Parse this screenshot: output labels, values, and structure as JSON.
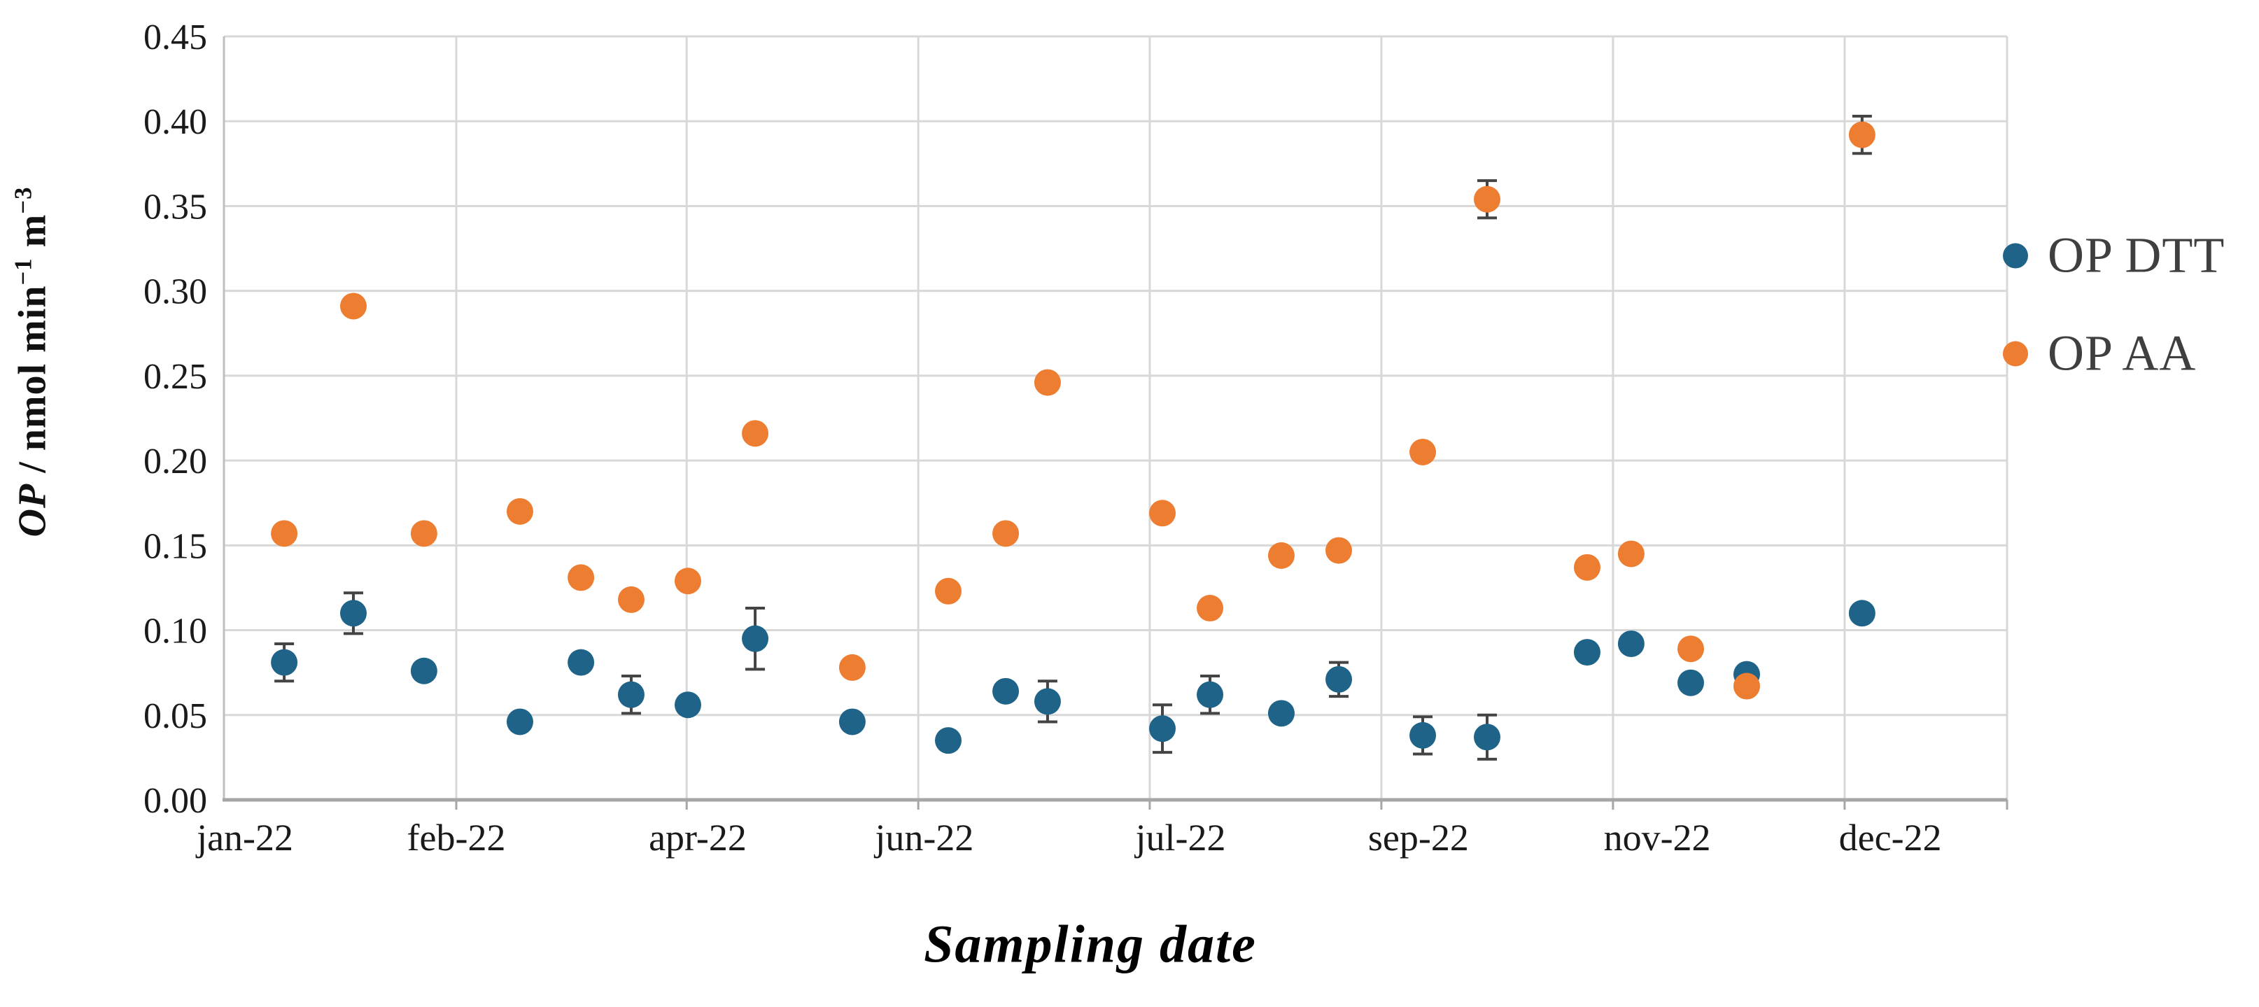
{
  "chart_data": {
    "type": "scatter",
    "title": "",
    "xlabel": "Sampling date",
    "ylabel_text": "OP / nmol min-1 m-3",
    "ylabel_parts": {
      "op": "OP",
      "mid": " / nmol min",
      "sup1": "−1",
      "m": " m",
      "sup2": "−3"
    },
    "ylim": [
      0.0,
      0.45
    ],
    "y_tick_step": 0.05,
    "y_tick_labels": [
      "0.00",
      "0.05",
      "0.10",
      "0.15",
      "0.20",
      "0.25",
      "0.30",
      "0.35",
      "0.40",
      "0.45"
    ],
    "grid": true,
    "legend_position": "right",
    "legend": [
      "OP DTT",
      "OP AA"
    ],
    "x_tick_labels": [
      {
        "label": "jan-22",
        "pos": 0.0118
      },
      {
        "label": "feb-22",
        "pos": 0.1303
      },
      {
        "label": "apr-22",
        "pos": 0.2657
      },
      {
        "label": "jun-22",
        "pos": 0.3928
      },
      {
        "label": "jul-22",
        "pos": 0.5365
      },
      {
        "label": "sep-22",
        "pos": 0.6699
      },
      {
        "label": "nov-22",
        "pos": 0.8038
      },
      {
        "label": "dec-22",
        "pos": 0.9345
      }
    ],
    "x_gridline_pos": [
      0.1303,
      0.2595,
      0.3894,
      0.5192,
      0.6491,
      0.779,
      0.9089,
      1.0
    ],
    "series": [
      {
        "name": "OP DTT",
        "color": "#1F6488",
        "points": [
          {
            "pos": 0.0338,
            "y": 0.081,
            "err": 0.011
          },
          {
            "pos": 0.0726,
            "y": 0.11,
            "err": 0.012
          },
          {
            "pos": 0.1122,
            "y": 0.076,
            "err": null
          },
          {
            "pos": 0.166,
            "y": 0.046,
            "err": null
          },
          {
            "pos": 0.2002,
            "y": 0.081,
            "err": null
          },
          {
            "pos": 0.2284,
            "y": 0.062,
            "err": 0.011
          },
          {
            "pos": 0.2602,
            "y": 0.056,
            "err": null
          },
          {
            "pos": 0.2979,
            "y": 0.095,
            "err": 0.018
          },
          {
            "pos": 0.3524,
            "y": 0.046,
            "err": null
          },
          {
            "pos": 0.4062,
            "y": 0.035,
            "err": null
          },
          {
            "pos": 0.4384,
            "y": 0.064,
            "err": null
          },
          {
            "pos": 0.4619,
            "y": 0.058,
            "err": 0.012
          },
          {
            "pos": 0.5263,
            "y": 0.042,
            "err": 0.014
          },
          {
            "pos": 0.553,
            "y": 0.062,
            "err": 0.011
          },
          {
            "pos": 0.593,
            "y": 0.051,
            "err": null
          },
          {
            "pos": 0.6252,
            "y": 0.071,
            "err": 0.01
          },
          {
            "pos": 0.6723,
            "y": 0.038,
            "err": 0.011
          },
          {
            "pos": 0.7084,
            "y": 0.037,
            "err": 0.013
          },
          {
            "pos": 0.7645,
            "y": 0.087,
            "err": null
          },
          {
            "pos": 0.7892,
            "y": 0.092,
            "err": null
          },
          {
            "pos": 0.8226,
            "y": 0.069,
            "err": null
          },
          {
            "pos": 0.854,
            "y": 0.074,
            "err": null
          },
          {
            "pos": 0.9187,
            "y": 0.11,
            "err": null
          }
        ]
      },
      {
        "name": "OP AA",
        "color": "#ED7D31",
        "points": [
          {
            "pos": 0.0338,
            "y": 0.157,
            "err": null
          },
          {
            "pos": 0.0726,
            "y": 0.291,
            "err": null
          },
          {
            "pos": 0.1122,
            "y": 0.157,
            "err": null
          },
          {
            "pos": 0.166,
            "y": 0.17,
            "err": null
          },
          {
            "pos": 0.2002,
            "y": 0.131,
            "err": null
          },
          {
            "pos": 0.2284,
            "y": 0.118,
            "err": null
          },
          {
            "pos": 0.2602,
            "y": 0.129,
            "err": null
          },
          {
            "pos": 0.2979,
            "y": 0.216,
            "err": null
          },
          {
            "pos": 0.3524,
            "y": 0.078,
            "err": null
          },
          {
            "pos": 0.4062,
            "y": 0.123,
            "err": null
          },
          {
            "pos": 0.4384,
            "y": 0.157,
            "err": null
          },
          {
            "pos": 0.4619,
            "y": 0.246,
            "err": null
          },
          {
            "pos": 0.5263,
            "y": 0.169,
            "err": null
          },
          {
            "pos": 0.553,
            "y": 0.113,
            "err": null
          },
          {
            "pos": 0.593,
            "y": 0.144,
            "err": null
          },
          {
            "pos": 0.6252,
            "y": 0.147,
            "err": null
          },
          {
            "pos": 0.6723,
            "y": 0.205,
            "err": null
          },
          {
            "pos": 0.7084,
            "y": 0.354,
            "err": 0.011
          },
          {
            "pos": 0.7645,
            "y": 0.137,
            "err": null
          },
          {
            "pos": 0.7892,
            "y": 0.145,
            "err": null
          },
          {
            "pos": 0.8226,
            "y": 0.089,
            "err": null
          },
          {
            "pos": 0.854,
            "y": 0.067,
            "err": null
          },
          {
            "pos": 0.9187,
            "y": 0.392,
            "err": 0.011
          }
        ]
      }
    ]
  },
  "styles": {
    "gridline_color": "#d8d8d8",
    "axis_line_color": "#bfbfbf",
    "x_axis_line_color": "#a6a6a6",
    "error_bar_color": "#444444",
    "tick_label_color": "#1a1a1a",
    "legend_text_color": "#3f3f3f"
  }
}
